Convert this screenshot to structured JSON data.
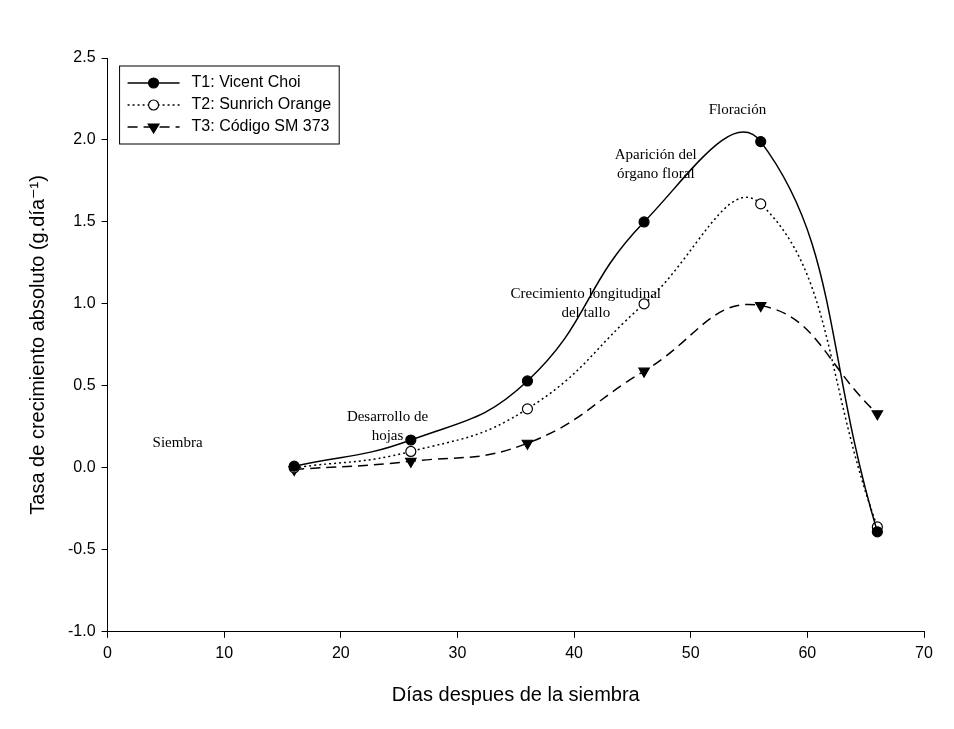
{
  "chart_data": {
    "type": "line",
    "x_label": "Días despues de la siembra",
    "y_label": "Tasa de crecimiento absoluto (g.día⁻¹)",
    "x": [
      16,
      26,
      36,
      46,
      56,
      66
    ],
    "series": [
      {
        "name": "T1: Vicent Choi",
        "color": "#000000",
        "marker": "circle",
        "line_style": "solid",
        "values": [
          0.01,
          0.17,
          0.53,
          1.5,
          1.99,
          -0.39
        ]
      },
      {
        "name": "T2: Sunrich Orange",
        "color": "#000000",
        "marker": "open_circle",
        "line_style": "dotted",
        "values": [
          0.0,
          0.1,
          0.36,
          1.0,
          1.61,
          -0.36
        ]
      },
      {
        "name": "T3: Código SM 373",
        "color": "#000000",
        "marker": "triangle_down",
        "line_style": "dashed",
        "values": [
          -0.01,
          0.04,
          0.15,
          0.59,
          0.99,
          0.33
        ]
      }
    ],
    "xlim": [
      0,
      70
    ],
    "xticks": [
      0,
      10,
      20,
      30,
      40,
      50,
      60,
      70
    ],
    "ylim": [
      -1.0,
      2.5
    ],
    "yticks": [
      {
        "value": -1.0,
        "label": "-1.0"
      },
      -0.5,
      {
        "value": 0.0,
        "label": "0.0"
      },
      0.5,
      {
        "value": 1.0,
        "label": "1.0"
      },
      1.5,
      {
        "value": 2.0,
        "label": "2.0"
      },
      2.5
    ],
    "grid": false,
    "legend": "upper left",
    "annotations": [
      {
        "text": [
          "Siembra"
        ],
        "x": 6,
        "y": 0.15
      },
      {
        "text": [
          "Desarrollo de",
          "hojas"
        ],
        "x": 24,
        "y": 0.25
      },
      {
        "text": [
          "Crecimiento longitudinal",
          "del tallo"
        ],
        "x": 41,
        "y": 1.0
      },
      {
        "text": [
          "Aparición del",
          "órgano floral"
        ],
        "x": 47,
        "y": 1.85
      },
      {
        "text": [
          "Floración"
        ],
        "x": 54,
        "y": 2.18
      }
    ]
  }
}
